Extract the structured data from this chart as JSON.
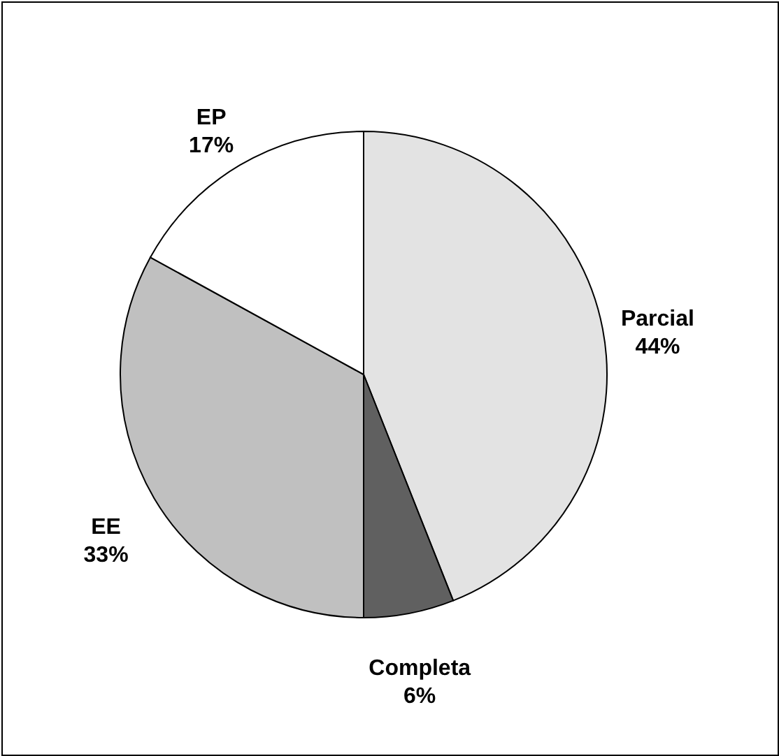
{
  "chart_data": {
    "type": "pie",
    "categories": [
      "Parcial",
      "Completa",
      "EE",
      "EP"
    ],
    "values": [
      44,
      6,
      33,
      17
    ],
    "value_labels": [
      "44%",
      "6%",
      "33%",
      "17%"
    ],
    "colors": [
      "#e3e3e3",
      "#606060",
      "#c0c0c0",
      "#ffffff"
    ],
    "legend": false
  }
}
